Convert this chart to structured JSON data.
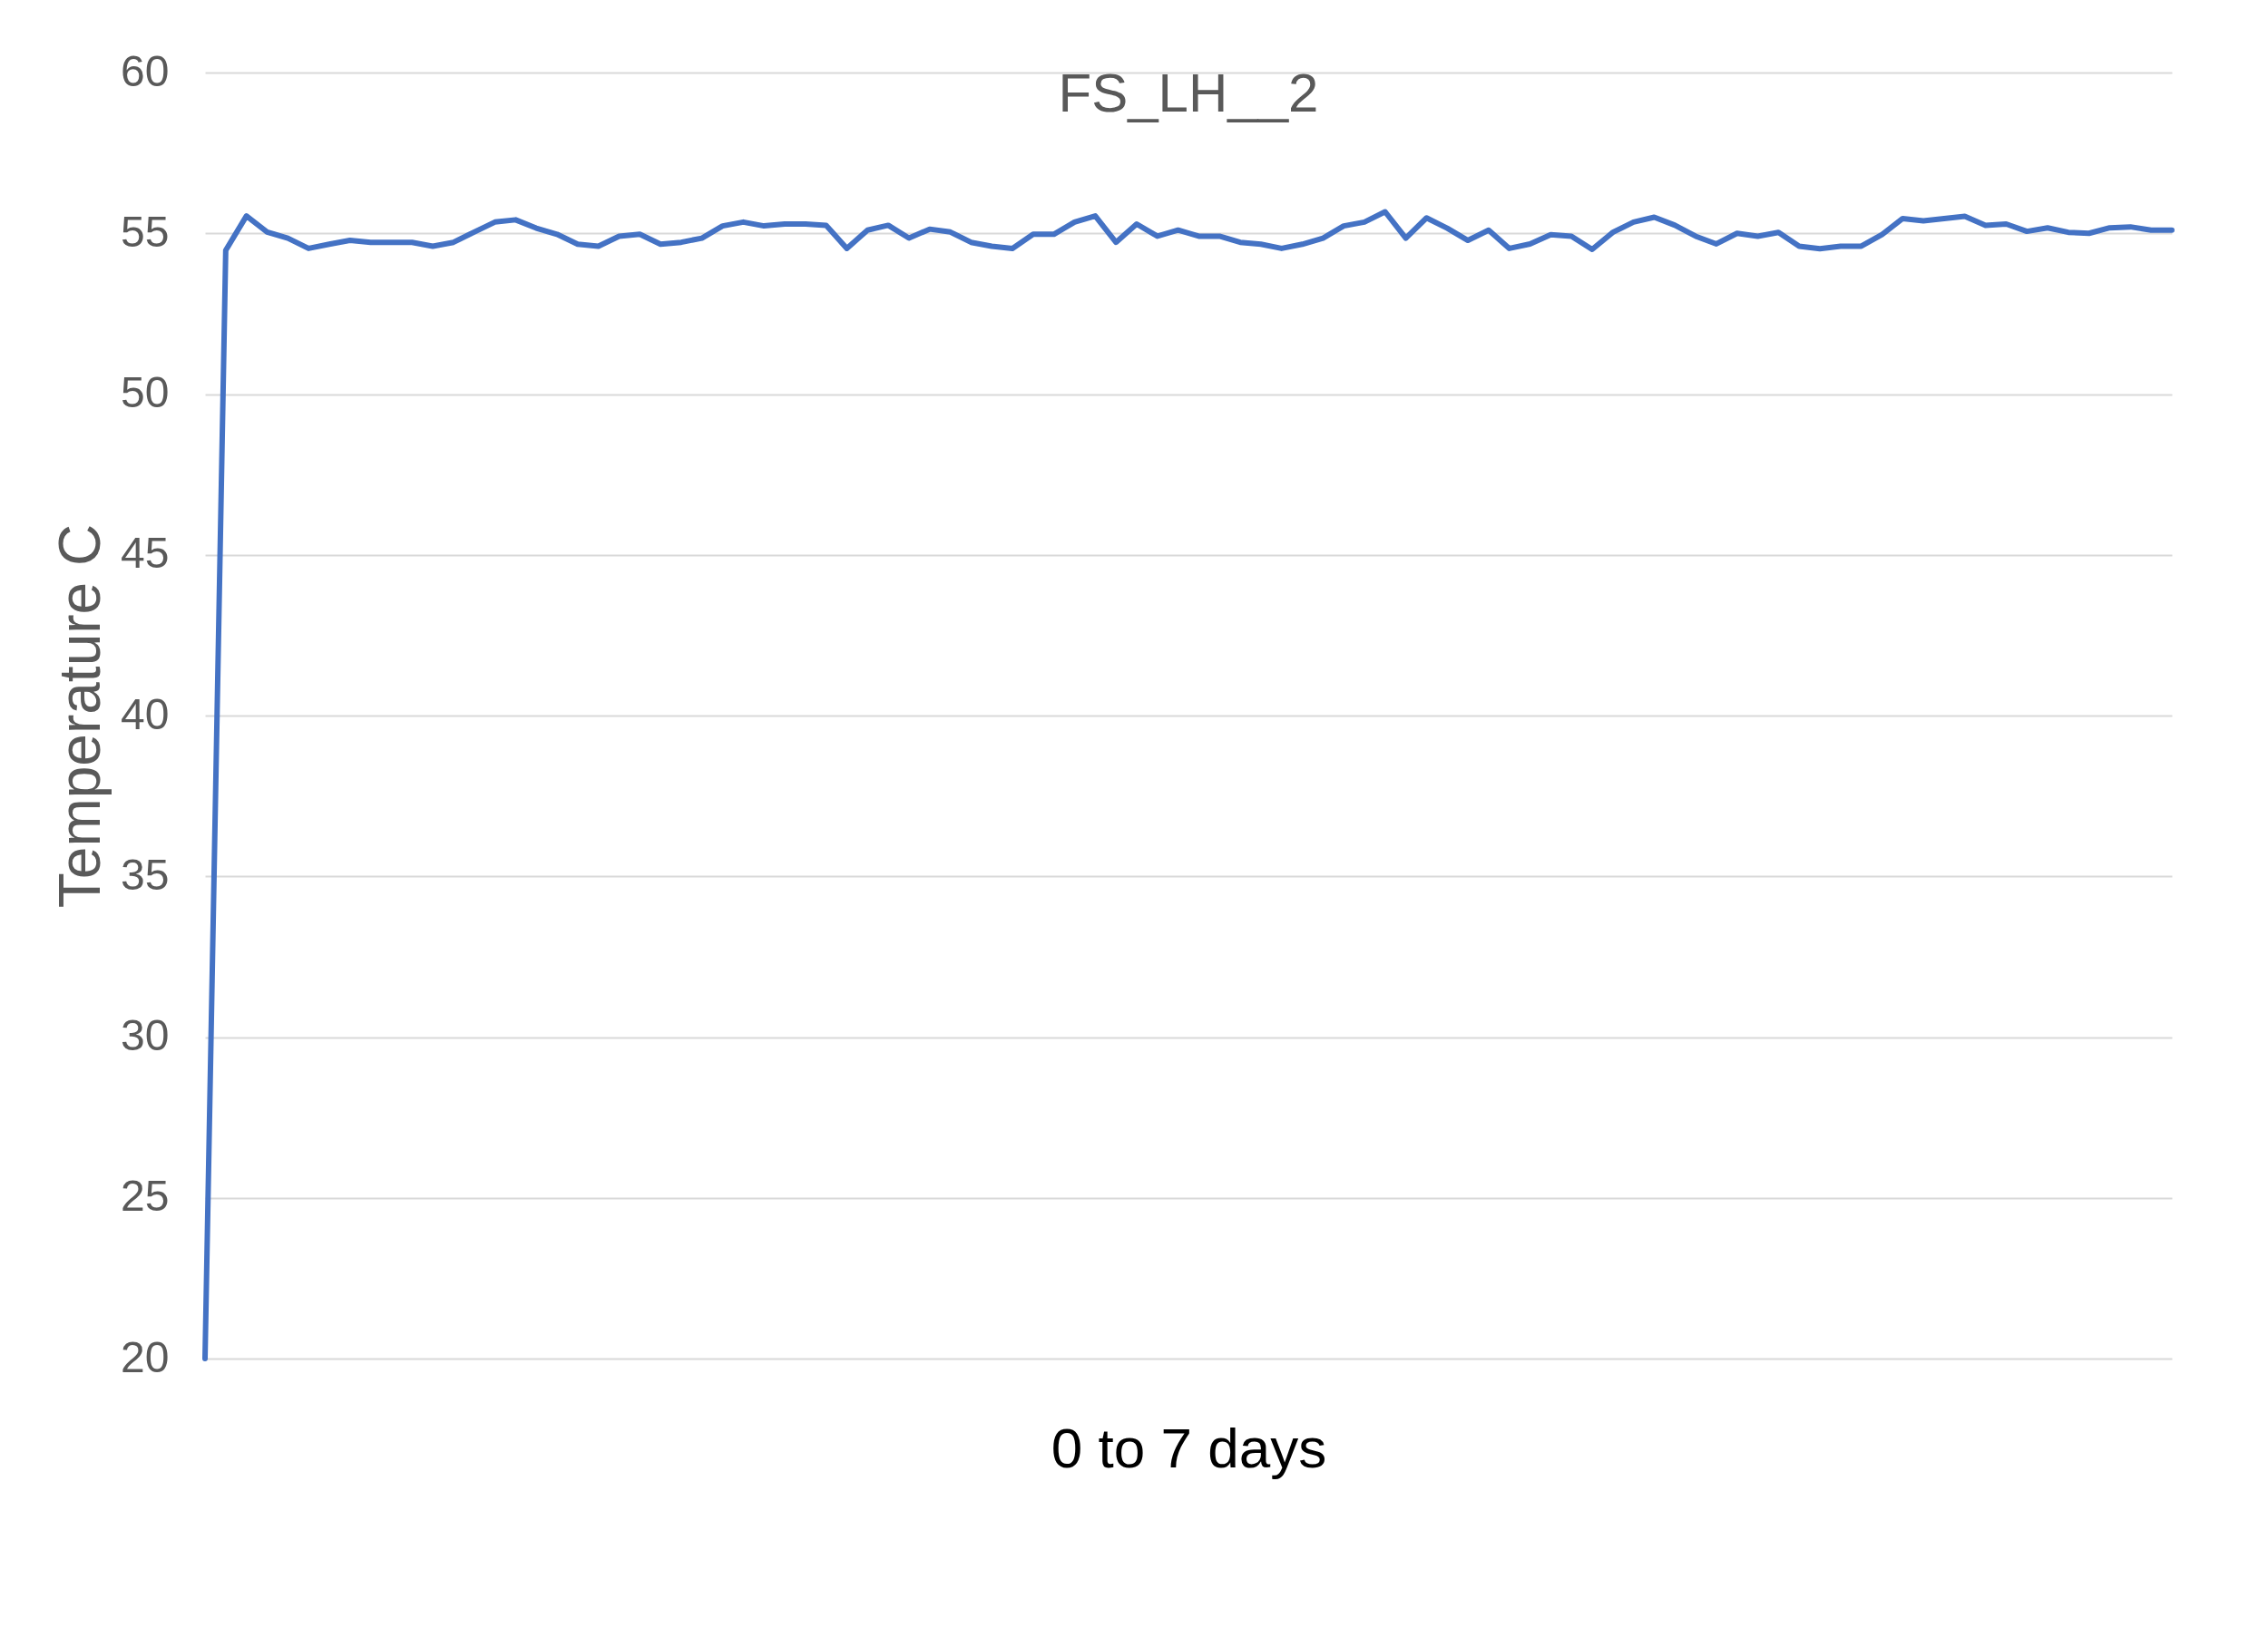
{
  "chart_data": {
    "type": "line",
    "title": "FS_LH__2",
    "xlabel": "0 to 7 days",
    "ylabel": "Temperature C",
    "tick_labels": "y",
    "categories": [
      null,
      null,
      null,
      null,
      null,
      null,
      null,
      null,
      null,
      null,
      null,
      null,
      null,
      null,
      null,
      null,
      null,
      null,
      null,
      null,
      null,
      null,
      null,
      null,
      null,
      null,
      null,
      null,
      null,
      null,
      null,
      null,
      null,
      null,
      null,
      null,
      null,
      null,
      null,
      null,
      null,
      null,
      null,
      null,
      null,
      null,
      null,
      null,
      null,
      null,
      null,
      null,
      null,
      null,
      null,
      null,
      null,
      null,
      null,
      null,
      null,
      null,
      null,
      null,
      null,
      null,
      null,
      null,
      null,
      null,
      null,
      null,
      null,
      null,
      null,
      null,
      null,
      null,
      null,
      null,
      null,
      null,
      null,
      null,
      null,
      null,
      null,
      null,
      null,
      null,
      null,
      null,
      null,
      null,
      null,
      null
    ],
    "series": [
      {
        "color": "#4472c4",
        "values": [
          20,
          54.47,
          55.54,
          55.04,
          54.85,
          54.53,
          54.66,
          54.78,
          54.72,
          54.72,
          54.72,
          54.6,
          54.72,
          55.04,
          55.35,
          55.42,
          55.16,
          54.97,
          54.66,
          54.6,
          54.91,
          54.97,
          54.66,
          54.72,
          54.85,
          55.23,
          55.35,
          55.23,
          55.29,
          55.29,
          55.25,
          54.53,
          55.1,
          55.25,
          54.85,
          55.13,
          55.04,
          54.72,
          54.6,
          54.53,
          54.97,
          54.97,
          55.35,
          55.54,
          54.72,
          55.29,
          54.91,
          55.1,
          54.91,
          54.91,
          54.72,
          54.66,
          54.53,
          54.66,
          54.85,
          55.23,
          55.35,
          55.67,
          54.85,
          55.48,
          55.16,
          54.78,
          55.1,
          54.53,
          54.67,
          54.96,
          54.91,
          54.5,
          55.03,
          55.35,
          55.5,
          55.25,
          54.91,
          54.67,
          55.0,
          54.91,
          55.03,
          54.6,
          54.52,
          54.6,
          54.6,
          54.96,
          55.46,
          55.39,
          55.46,
          55.53,
          55.25,
          55.29,
          55.06,
          55.17,
          55.03,
          55.0,
          55.17,
          55.2,
          55.1,
          55.1
        ]
      }
    ],
    "ylim": [
      20,
      60
    ],
    "yticks": [
      20,
      25,
      30,
      35,
      40,
      45,
      50,
      55,
      60
    ],
    "grid": "y"
  }
}
